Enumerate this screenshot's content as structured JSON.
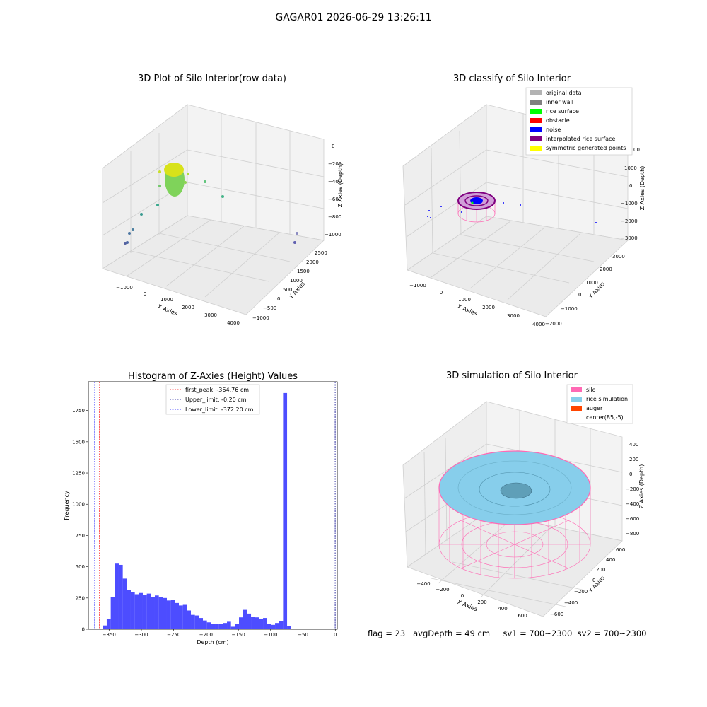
{
  "figure_title": "GAGAR01 2026-06-29 13:26:11",
  "status_line": "flag = 23   avgDepth = 49 cm     sv1 = 700~2300  sv2 = 700~2300",
  "panels": {
    "raw": {
      "title": "3D Plot of Silo Interior(row data)",
      "xlabel": "X Axies",
      "ylabel": "Y Axies",
      "zlabel": "Z Axies (Depth)",
      "x_ticks": [
        "−1000",
        "0",
        "1000",
        "2000",
        "3000",
        "4000"
      ],
      "y_ticks": [
        "−1000",
        "−500",
        "0",
        "500",
        "1000",
        "1500",
        "2000",
        "2500"
      ],
      "z_ticks": [
        "0",
        "−200",
        "−400",
        "−600",
        "−800",
        "−1000"
      ]
    },
    "classify": {
      "title": "3D classify of Silo Interior",
      "xlabel": "X Axies",
      "ylabel": "Y Axies",
      "zlabel": "Z Axies (Depth)",
      "x_ticks": [
        "−1000",
        "0",
        "1000",
        "2000",
        "3000",
        "4000"
      ],
      "y_ticks": [
        "−2000",
        "−1000",
        "0",
        "1000",
        "2000",
        "3000"
      ],
      "z_ticks": [
        "2000",
        "1000",
        "0",
        "−1000",
        "−2000",
        "−3000"
      ],
      "z_partial_tick": "00",
      "legend": [
        {
          "label": "original data",
          "color": "#b3b3b3"
        },
        {
          "label": "inner wall",
          "color": "#808080"
        },
        {
          "label": "rice surface",
          "color": "#00ff00"
        },
        {
          "label": "obstacle",
          "color": "#ff0000"
        },
        {
          "label": "noise",
          "color": "#0000ff"
        },
        {
          "label": "interpolated rice surface",
          "color": "#800080"
        },
        {
          "label": "symmetric generated points",
          "color": "#ffff00"
        }
      ]
    },
    "simulation": {
      "title": "3D simulation of Silo Interior",
      "xlabel": "X Axies",
      "ylabel": "Y Axies",
      "zlabel": "Z Axies (Depth)",
      "x_ticks": [
        "−400",
        "−200",
        "0",
        "200",
        "400",
        "600"
      ],
      "y_ticks": [
        "−600",
        "−400",
        "−200",
        "0",
        "200",
        "400",
        "600"
      ],
      "z_ticks": [
        "400",
        "200",
        "0",
        "−200",
        "−400",
        "−600",
        "−800"
      ],
      "legend": [
        {
          "label": "silo",
          "color": "#ff69b4"
        },
        {
          "label": "rice simulation",
          "color": "#87ceeb"
        },
        {
          "label": "auger",
          "color": "#ff4500"
        },
        {
          "label": "center(85,-5)",
          "color": ""
        }
      ]
    }
  },
  "chart_data": [
    {
      "type": "bar",
      "title": "Histogram of Z-Axies (Height) Values",
      "xlabel": "Depth (cm)",
      "ylabel": "Frequency",
      "xlim": [
        -382,
        3
      ],
      "ylim": [
        0,
        1980
      ],
      "x_ticks": [
        -350,
        -300,
        -250,
        -200,
        -150,
        -100,
        -50,
        0
      ],
      "x_tick_labels": [
        "−350",
        "−300",
        "−250",
        "−200",
        "−150",
        "−100",
        "−50",
        "0"
      ],
      "y_ticks": [
        0,
        250,
        500,
        750,
        1000,
        1250,
        1500,
        1750
      ],
      "y_tick_labels": [
        "0",
        "250",
        "500",
        "750",
        "1000",
        "1250",
        "1500",
        "1750"
      ],
      "bar_color": "#4d4dff",
      "bin_start": -372.2,
      "bin_width": 6.2,
      "values": [
        5,
        5,
        30,
        80,
        260,
        525,
        515,
        405,
        315,
        295,
        280,
        290,
        275,
        285,
        260,
        270,
        260,
        250,
        230,
        235,
        210,
        190,
        195,
        150,
        115,
        110,
        90,
        70,
        55,
        45,
        45,
        45,
        50,
        60,
        20,
        45,
        95,
        155,
        125,
        100,
        95,
        85,
        90,
        45,
        35,
        50,
        65,
        1890,
        25
      ],
      "lines": [
        {
          "label": "first_peak: -364.76 cm",
          "x": -364.76,
          "color": "#ff0000"
        },
        {
          "label": "Upper_limit: -0.20 cm",
          "x": -0.2,
          "color": "#00008b"
        },
        {
          "label": "Lower_limit: -372.20 cm",
          "x": -372.2,
          "color": "#0000ff"
        }
      ]
    }
  ]
}
